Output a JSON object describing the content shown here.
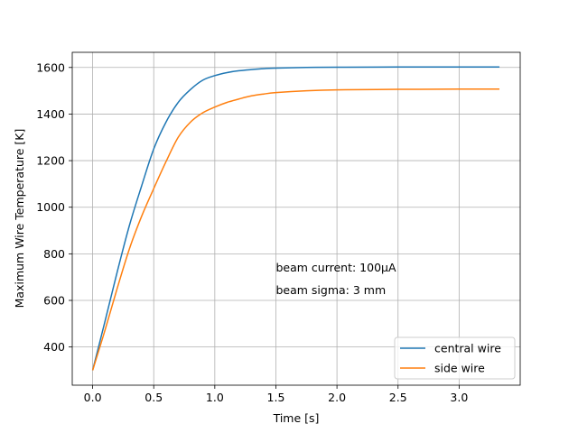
{
  "chart_data": {
    "type": "line",
    "title": "",
    "xlabel": "Time [s]",
    "ylabel": "Maximum Wire Temperature [K]",
    "xlim": [
      -0.167,
      3.5
    ],
    "ylim": [
      236,
      1665
    ],
    "xticks": [
      0.0,
      0.5,
      1.0,
      1.5,
      2.0,
      2.5,
      3.0
    ],
    "xtick_labels": [
      "0.0",
      "0.5",
      "1.0",
      "1.5",
      "2.0",
      "2.5",
      "3.0"
    ],
    "yticks": [
      400,
      600,
      800,
      1000,
      1200,
      1400,
      1600
    ],
    "ytick_labels": [
      "400",
      "600",
      "800",
      "1000",
      "1200",
      "1400",
      "1600"
    ],
    "grid": true,
    "legend_position": "lower right",
    "series": [
      {
        "name": "central wire",
        "color": "#1f77b4",
        "x": [
          0.0,
          0.1,
          0.2,
          0.3,
          0.4,
          0.5,
          0.6,
          0.7,
          0.8,
          0.9,
          1.0,
          1.1,
          1.2,
          1.3,
          1.4,
          1.5,
          1.75,
          2.0,
          2.5,
          3.0,
          3.33
        ],
        "y": [
          300,
          508,
          720,
          920,
          1090,
          1250,
          1365,
          1450,
          1505,
          1545,
          1565,
          1578,
          1586,
          1591,
          1595,
          1597,
          1600,
          1601,
          1602,
          1602,
          1602
        ]
      },
      {
        "name": "side wire",
        "color": "#ff7f0e",
        "x": [
          0.0,
          0.1,
          0.2,
          0.3,
          0.4,
          0.5,
          0.6,
          0.7,
          0.8,
          0.9,
          1.0,
          1.1,
          1.2,
          1.3,
          1.4,
          1.5,
          1.75,
          2.0,
          2.5,
          3.0,
          3.33
        ],
        "y": [
          300,
          470,
          650,
          820,
          960,
          1080,
          1195,
          1300,
          1365,
          1405,
          1430,
          1450,
          1465,
          1478,
          1486,
          1492,
          1500,
          1504,
          1506,
          1507,
          1507
        ]
      }
    ],
    "annotations": [
      {
        "text": "beam current: 100μA",
        "x": 1.5,
        "y": 740
      },
      {
        "text": "beam sigma: 3 mm",
        "x": 1.5,
        "y": 643
      }
    ]
  }
}
